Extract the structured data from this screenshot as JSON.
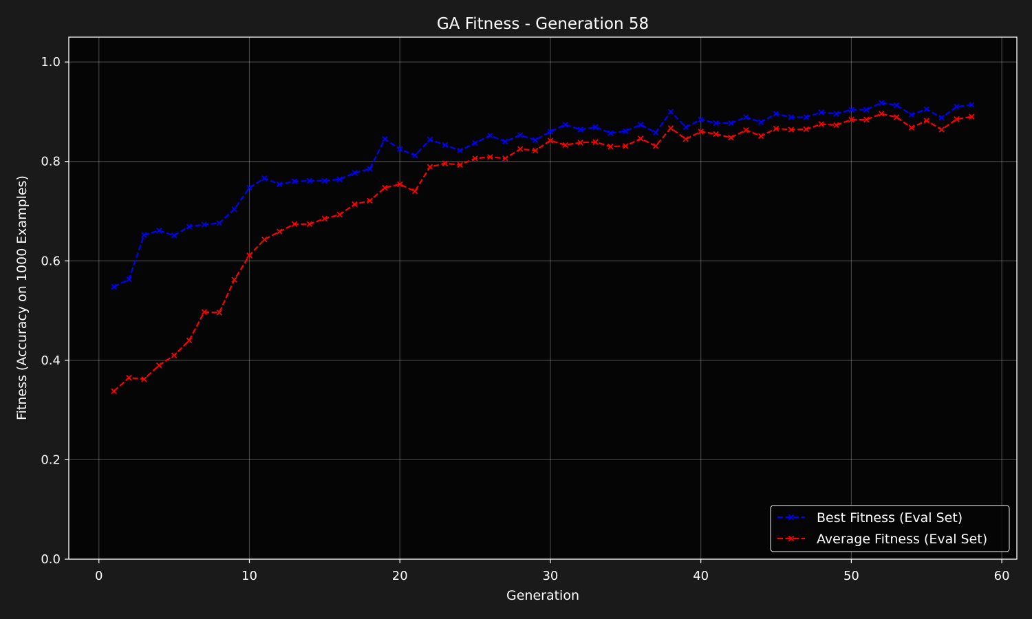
{
  "chart_data": {
    "type": "line",
    "title": "GA Fitness - Generation 58",
    "xlabel": "Generation",
    "ylabel": "Fitness (Accuracy on 1000 Examples)",
    "xlim": [
      -2,
      61
    ],
    "ylim": [
      0,
      1.05
    ],
    "xticks": [
      0,
      10,
      20,
      30,
      40,
      50,
      60
    ],
    "yticks": [
      0.0,
      0.2,
      0.4,
      0.6,
      0.8,
      1.0
    ],
    "ytick_labels": [
      "0.0",
      "0.2",
      "0.4",
      "0.6",
      "0.8",
      "1.0"
    ],
    "grid": true,
    "legend_position": "bottom-right",
    "background": "#1a1a1a",
    "plot_background": "#050505",
    "x": [
      1,
      2,
      3,
      4,
      5,
      6,
      7,
      8,
      9,
      10,
      11,
      12,
      13,
      14,
      15,
      16,
      17,
      18,
      19,
      20,
      21,
      22,
      23,
      24,
      25,
      26,
      27,
      28,
      29,
      30,
      31,
      32,
      33,
      34,
      35,
      36,
      37,
      38,
      39,
      40,
      41,
      42,
      43,
      44,
      45,
      46,
      47,
      48,
      49,
      50,
      51,
      52,
      53,
      54,
      55,
      56,
      57,
      58
    ],
    "series": [
      {
        "name": "Best Fitness (Eval Set)",
        "color": "#0000ff",
        "marker": "x",
        "linestyle": "dashed",
        "values": [
          0.548,
          0.563,
          0.652,
          0.661,
          0.651,
          0.669,
          0.673,
          0.676,
          0.704,
          0.747,
          0.766,
          0.754,
          0.76,
          0.761,
          0.761,
          0.764,
          0.777,
          0.785,
          0.845,
          0.825,
          0.812,
          0.844,
          0.833,
          0.822,
          0.837,
          0.852,
          0.84,
          0.853,
          0.843,
          0.86,
          0.874,
          0.864,
          0.869,
          0.857,
          0.861,
          0.874,
          0.858,
          0.9,
          0.869,
          0.884,
          0.877,
          0.877,
          0.889,
          0.879,
          0.896,
          0.889,
          0.889,
          0.899,
          0.896,
          0.904,
          0.904,
          0.918,
          0.913,
          0.894,
          0.905,
          0.888,
          0.91,
          0.914
        ]
      },
      {
        "name": "Average Fitness (Eval Set)",
        "color": "#ff0000",
        "marker": "x",
        "linestyle": "dashed",
        "values": [
          0.338,
          0.365,
          0.362,
          0.39,
          0.41,
          0.44,
          0.497,
          0.496,
          0.562,
          0.611,
          0.643,
          0.659,
          0.674,
          0.674,
          0.685,
          0.693,
          0.714,
          0.721,
          0.747,
          0.754,
          0.74,
          0.789,
          0.796,
          0.793,
          0.806,
          0.809,
          0.806,
          0.825,
          0.822,
          0.842,
          0.833,
          0.838,
          0.839,
          0.83,
          0.831,
          0.846,
          0.831,
          0.867,
          0.845,
          0.86,
          0.855,
          0.848,
          0.863,
          0.851,
          0.866,
          0.864,
          0.865,
          0.875,
          0.873,
          0.884,
          0.884,
          0.896,
          0.889,
          0.868,
          0.882,
          0.864,
          0.885,
          0.89
        ]
      }
    ]
  }
}
